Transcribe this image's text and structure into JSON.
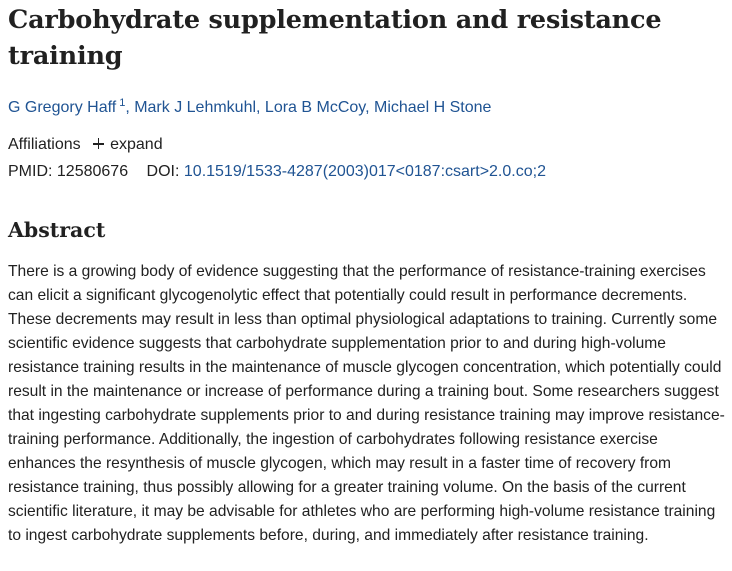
{
  "article": {
    "title": "Carbohydrate supplementation and resistance training",
    "authors": [
      {
        "name": "G Gregory Haff",
        "affiliation_marker": "1"
      },
      {
        "name": "Mark J Lehmkuhl"
      },
      {
        "name": "Lora B McCoy"
      },
      {
        "name": "Michael H Stone"
      }
    ],
    "author_separator": ", ",
    "affiliations_label": "Affiliations",
    "expand_label": "expand",
    "pmid_label": "PMID:",
    "pmid_value": "12580676",
    "doi_label": "DOI:",
    "doi_value": "10.1519/1533-4287(2003)017<0187:csart>2.0.co;2"
  },
  "abstract": {
    "heading": "Abstract",
    "text": "There is a growing body of evidence suggesting that the performance of resistance-training exercises can elicit a significant glycogenolytic effect that potentially could result in performance decrements. These decrements may result in less than optimal physiological adaptations to training. Currently some scientific evidence suggests that carbohydrate supplementation prior to and during high-volume resistance training results in the maintenance of muscle glycogen concentration, which potentially could result in the maintenance or increase of performance during a training bout. Some researchers suggest that ingesting carbohydrate supplements prior to and during resistance training may improve resistance-training performance. Additionally, the ingestion of carbohydrates following resistance exercise enhances the resynthesis of muscle glycogen, which may result in a faster time of recovery from resistance training, thus possibly allowing for a greater training volume. On the basis of the current scientific literature, it may be advisable for athletes who are performing high-volume resistance training to ingest carbohydrate supplements before, during, and immediately after resistance training."
  },
  "colors": {
    "text": "#212121",
    "link": "#205493",
    "background": "#ffffff"
  }
}
